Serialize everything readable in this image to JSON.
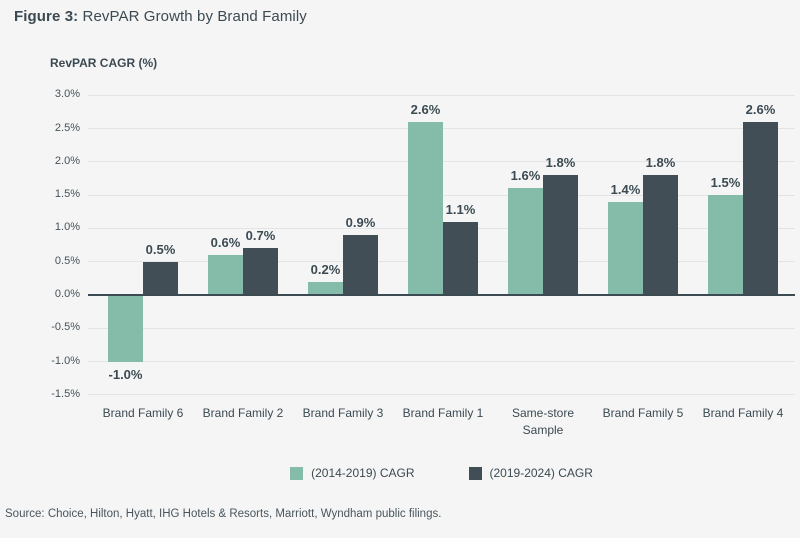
{
  "header": {
    "figure_label": "Figure 3:",
    "title": "RevPAR Growth by Brand Family"
  },
  "chart": {
    "axis_title": "RevPAR CAGR (%)",
    "y_ticks": [
      "3.0%",
      "2.5%",
      "2.0%",
      "1.5%",
      "1.0%",
      "0.5%",
      "0.0%",
      "-0.5%",
      "-1.0%",
      "-1.5%"
    ]
  },
  "chart_data": {
    "type": "bar",
    "title": "RevPAR Growth by Brand Family",
    "xlabel": "",
    "ylabel": "RevPAR CAGR (%)",
    "categories": [
      "Brand Family 6",
      "Brand Family 2",
      "Brand Family 3",
      "Brand Family 1",
      "Same-store Sample",
      "Brand Family 5",
      "Brand Family 4"
    ],
    "series": [
      {
        "name": "(2014-2019) CAGR",
        "color": "#84BCA9",
        "values": [
          -1.0,
          0.6,
          0.2,
          2.6,
          1.6,
          1.4,
          1.5
        ]
      },
      {
        "name": "(2019-2024) CAGR",
        "color": "#414E55",
        "values": [
          0.5,
          0.7,
          0.9,
          1.1,
          1.8,
          1.8,
          2.6
        ]
      }
    ],
    "value_labels": [
      [
        "-1.0%",
        "0.6%",
        "0.2%",
        "2.6%",
        "1.6%",
        "1.4%",
        "1.5%"
      ],
      [
        "0.5%",
        "0.7%",
        "0.9%",
        "1.1%",
        "1.8%",
        "1.8%",
        "2.6%"
      ]
    ],
    "ylim": [
      -1.5,
      3.0
    ],
    "y_step": 0.5,
    "grid": true,
    "legend_position": "bottom"
  },
  "footer": {
    "source": "Source: Choice, Hilton, Hyatt, IHG Hotels & Resorts, Marriott, Wyndham public filings."
  },
  "colors": {
    "background": "#F5F5F5",
    "text": "#3B4A52",
    "grid": "#E4E4E4",
    "axis_line": "#3C4A52",
    "series_teal": "#84BCA9",
    "series_dark": "#414E55"
  }
}
